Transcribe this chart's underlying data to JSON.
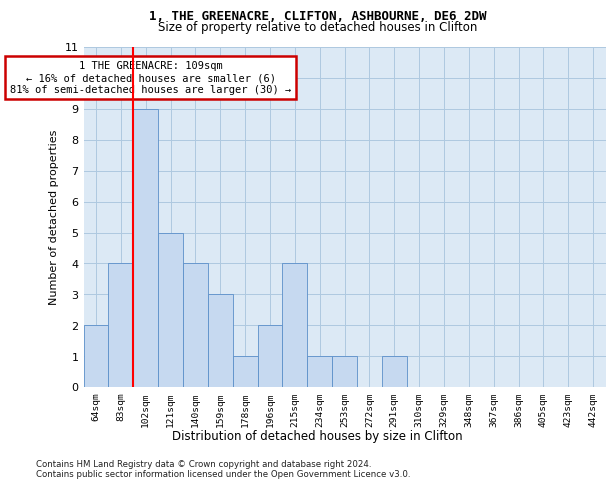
{
  "title_line1": "1, THE GREENACRE, CLIFTON, ASHBOURNE, DE6 2DW",
  "title_line2": "Size of property relative to detached houses in Clifton",
  "xlabel": "Distribution of detached houses by size in Clifton",
  "ylabel": "Number of detached properties",
  "bin_labels": [
    "64sqm",
    "83sqm",
    "102sqm",
    "121sqm",
    "140sqm",
    "159sqm",
    "178sqm",
    "196sqm",
    "215sqm",
    "234sqm",
    "253sqm",
    "272sqm",
    "291sqm",
    "310sqm",
    "329sqm",
    "348sqm",
    "367sqm",
    "386sqm",
    "405sqm",
    "423sqm",
    "442sqm"
  ],
  "bar_values": [
    2,
    4,
    9,
    5,
    4,
    3,
    1,
    2,
    4,
    1,
    1,
    0,
    1,
    0,
    0,
    0,
    0,
    0,
    0,
    0,
    0
  ],
  "bar_color": "#c6d9f0",
  "bar_edge_color": "#5b8fc9",
  "red_line_x": 1.5,
  "ylim": [
    0,
    11
  ],
  "yticks": [
    0,
    1,
    2,
    3,
    4,
    5,
    6,
    7,
    8,
    9,
    10,
    11
  ],
  "annotation_text": "1 THE GREENACRE: 109sqm\n← 16% of detached houses are smaller (6)\n81% of semi-detached houses are larger (30) →",
  "annotation_box_color": "#ffffff",
  "annotation_box_edge": "#cc0000",
  "footnote": "Contains HM Land Registry data © Crown copyright and database right 2024.\nContains public sector information licensed under the Open Government Licence v3.0.",
  "grid_color": "#aec8e0",
  "background_color": "#dce9f5"
}
